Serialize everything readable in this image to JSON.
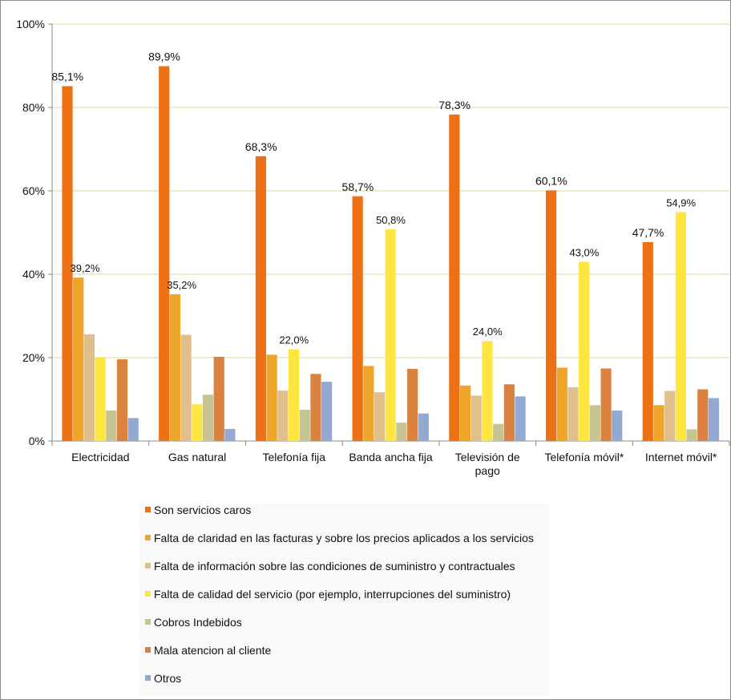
{
  "chart_data": {
    "type": "bar",
    "title": "",
    "xlabel": "",
    "ylabel": "",
    "ylim": [
      0,
      100
    ],
    "yticks": [
      "0%",
      "20%",
      "40%",
      "60%",
      "80%",
      "100%"
    ],
    "grid": true,
    "legend_position": "bottom",
    "categories": [
      "Electricidad",
      "Gas natural",
      "Telefonía fija",
      "Banda ancha fija",
      "Televisión de pago",
      "Telefonía móvil*",
      "Internet móvil*"
    ],
    "series": [
      {
        "name": "Son servicios caros",
        "color": "#EC7014",
        "values": [
          85.1,
          89.9,
          68.3,
          58.7,
          78.3,
          60.1,
          47.7
        ],
        "labels": [
          "85,1%",
          "89,9%",
          "68,3%",
          "58,7%",
          "78,3%",
          "60,1%",
          "47,7%"
        ]
      },
      {
        "name": "Falta de claridad en las facturas y sobre los precios aplicados a los servicios",
        "color": "#EEA52A",
        "values": [
          39.2,
          35.2,
          20.7,
          18.0,
          13.3,
          17.6,
          8.6
        ],
        "labels": [
          "39,2%",
          "35,2%",
          null,
          null,
          null,
          null,
          null
        ]
      },
      {
        "name": "Falta de información sobre las condiciones de suministro y contractuales",
        "color": "#DFC08C",
        "values": [
          25.6,
          25.5,
          12.1,
          11.7,
          10.9,
          12.9,
          12.0
        ],
        "labels": [
          null,
          null,
          null,
          null,
          null,
          null,
          null
        ]
      },
      {
        "name": "Falta de calidad del servicio (por ejemplo, interrupciones del suministro)",
        "color": "#FFE53F",
        "values": [
          20.0,
          8.8,
          22.0,
          50.8,
          24.0,
          43.0,
          54.9
        ],
        "labels": [
          null,
          null,
          "22,0%",
          "50,8%",
          "24,0%",
          "43,0%",
          "54,9%"
        ]
      },
      {
        "name": "Cobros Indebidos",
        "color": "#C6C493",
        "values": [
          7.3,
          11.1,
          7.5,
          4.4,
          4.1,
          8.6,
          2.8
        ],
        "labels": [
          null,
          null,
          null,
          null,
          null,
          null,
          null
        ]
      },
      {
        "name": "Mala atencion al cliente",
        "color": "#DC8240",
        "values": [
          19.6,
          20.2,
          16.1,
          17.3,
          13.6,
          17.4,
          12.4
        ],
        "labels": [
          null,
          null,
          null,
          null,
          null,
          null,
          null
        ]
      },
      {
        "name": "Otros",
        "color": "#92A9D1",
        "values": [
          5.5,
          2.9,
          14.2,
          6.6,
          10.7,
          7.3,
          10.3
        ],
        "labels": [
          null,
          null,
          null,
          null,
          null,
          null,
          null
        ]
      }
    ]
  }
}
